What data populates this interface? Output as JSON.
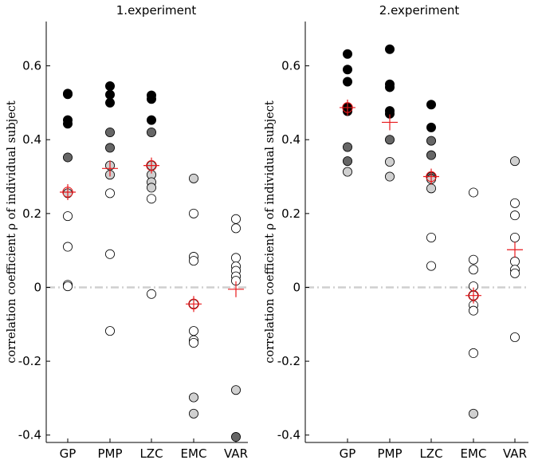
{
  "chart_data": [
    {
      "type": "scatter",
      "title": "1.experiment",
      "ylabel": "correlation coefficient ρ of individual subject",
      "ylim": [
        -0.42,
        0.72
      ],
      "yticks": [
        -0.4,
        -0.2,
        0,
        0.2,
        0.4,
        0.6
      ],
      "ytick_labels": [
        "-0.4",
        "-0.2",
        "0",
        "0.2",
        "0.4",
        "0.6"
      ],
      "categories": [
        "GP",
        "PMP",
        "LZC",
        "EMC",
        "VAR"
      ],
      "zero_line": {
        "y": 0,
        "style": "dash-dot",
        "color": "#cfcfcf"
      },
      "series": [
        {
          "name": "GP",
          "mean": 0.258,
          "mean_circle": true,
          "points": [
            {
              "y": 0.525,
              "fill": "#000000"
            },
            {
              "y": 0.523,
              "fill": "#000000"
            },
            {
              "y": 0.453,
              "fill": "#000000"
            },
            {
              "y": 0.443,
              "fill": "#000000"
            },
            {
              "y": 0.352,
              "fill": "#666666"
            },
            {
              "y": 0.255,
              "fill": "#d0d0d0"
            },
            {
              "y": 0.193,
              "fill": "#ffffff"
            },
            {
              "y": 0.11,
              "fill": "#ffffff"
            },
            {
              "y": 0.007,
              "fill": "#ffffff"
            },
            {
              "y": 0.003,
              "fill": "#ffffff"
            }
          ]
        },
        {
          "name": "PMP",
          "mean": 0.322,
          "mean_circle": false,
          "points": [
            {
              "y": 0.545,
              "fill": "#000000"
            },
            {
              "y": 0.522,
              "fill": "#000000"
            },
            {
              "y": 0.5,
              "fill": "#000000"
            },
            {
              "y": 0.42,
              "fill": "#666666"
            },
            {
              "y": 0.378,
              "fill": "#666666"
            },
            {
              "y": 0.33,
              "fill": "#d0d0d0"
            },
            {
              "y": 0.305,
              "fill": "#d0d0d0"
            },
            {
              "y": 0.255,
              "fill": "#ffffff"
            },
            {
              "y": 0.09,
              "fill": "#ffffff"
            },
            {
              "y": -0.118,
              "fill": "#ffffff"
            }
          ]
        },
        {
          "name": "LZC",
          "mean": 0.33,
          "mean_circle": true,
          "points": [
            {
              "y": 0.52,
              "fill": "#000000"
            },
            {
              "y": 0.51,
              "fill": "#000000"
            },
            {
              "y": 0.453,
              "fill": "#000000"
            },
            {
              "y": 0.42,
              "fill": "#666666"
            },
            {
              "y": 0.33,
              "fill": "#d0d0d0"
            },
            {
              "y": 0.305,
              "fill": "#d0d0d0"
            },
            {
              "y": 0.285,
              "fill": "#d0d0d0"
            },
            {
              "y": 0.27,
              "fill": "#d0d0d0"
            },
            {
              "y": 0.24,
              "fill": "#ffffff"
            },
            {
              "y": -0.018,
              "fill": "#ffffff"
            }
          ]
        },
        {
          "name": "EMC",
          "mean": -0.045,
          "mean_circle": true,
          "points": [
            {
              "y": 0.295,
              "fill": "#d0d0d0"
            },
            {
              "y": 0.2,
              "fill": "#ffffff"
            },
            {
              "y": 0.083,
              "fill": "#ffffff"
            },
            {
              "y": 0.072,
              "fill": "#ffffff"
            },
            {
              "y": -0.045,
              "fill": "#ffffff"
            },
            {
              "y": -0.118,
              "fill": "#ffffff"
            },
            {
              "y": -0.143,
              "fill": "#ffffff"
            },
            {
              "y": -0.15,
              "fill": "#ffffff"
            },
            {
              "y": -0.298,
              "fill": "#d0d0d0"
            },
            {
              "y": -0.342,
              "fill": "#d0d0d0"
            }
          ]
        },
        {
          "name": "VAR",
          "mean": -0.005,
          "mean_circle": false,
          "points": [
            {
              "y": 0.185,
              "fill": "#ffffff"
            },
            {
              "y": 0.16,
              "fill": "#ffffff"
            },
            {
              "y": 0.08,
              "fill": "#ffffff"
            },
            {
              "y": 0.057,
              "fill": "#ffffff"
            },
            {
              "y": 0.045,
              "fill": "#ffffff"
            },
            {
              "y": 0.03,
              "fill": "#ffffff"
            },
            {
              "y": 0.018,
              "fill": "#ffffff"
            },
            {
              "y": -0.278,
              "fill": "#d0d0d0"
            },
            {
              "y": -0.405,
              "fill": "#666666"
            }
          ]
        }
      ]
    },
    {
      "type": "scatter",
      "title": "2.experiment",
      "ylabel": "correlation coefficient ρ of individual subject",
      "ylim": [
        -0.42,
        0.72
      ],
      "yticks": [
        -0.4,
        -0.2,
        0,
        0.2,
        0.4,
        0.6
      ],
      "ytick_labels": [
        "-0.4",
        "-0.2",
        "0",
        "0.2",
        "0.4",
        "0.6"
      ],
      "categories": [
        "GP",
        "PMP",
        "LZC",
        "EMC",
        "VAR"
      ],
      "zero_line": {
        "y": 0,
        "style": "dash-dot",
        "color": "#cfcfcf"
      },
      "series": [
        {
          "name": "GP",
          "mean": 0.487,
          "mean_circle": true,
          "points": [
            {
              "y": 0.632,
              "fill": "#000000"
            },
            {
              "y": 0.59,
              "fill": "#000000"
            },
            {
              "y": 0.557,
              "fill": "#000000"
            },
            {
              "y": 0.488,
              "fill": "#000000"
            },
            {
              "y": 0.477,
              "fill": "#000000"
            },
            {
              "y": 0.38,
              "fill": "#666666"
            },
            {
              "y": 0.342,
              "fill": "#666666"
            },
            {
              "y": 0.313,
              "fill": "#d0d0d0"
            }
          ]
        },
        {
          "name": "PMP",
          "mean": 0.447,
          "mean_circle": false,
          "points": [
            {
              "y": 0.645,
              "fill": "#000000"
            },
            {
              "y": 0.55,
              "fill": "#000000"
            },
            {
              "y": 0.542,
              "fill": "#000000"
            },
            {
              "y": 0.478,
              "fill": "#000000"
            },
            {
              "y": 0.47,
              "fill": "#000000"
            },
            {
              "y": 0.4,
              "fill": "#666666"
            },
            {
              "y": 0.34,
              "fill": "#d0d0d0"
            },
            {
              "y": 0.3,
              "fill": "#d0d0d0"
            }
          ]
        },
        {
          "name": "LZC",
          "mean": 0.3,
          "mean_circle": true,
          "points": [
            {
              "y": 0.495,
              "fill": "#000000"
            },
            {
              "y": 0.433,
              "fill": "#000000"
            },
            {
              "y": 0.397,
              "fill": "#666666"
            },
            {
              "y": 0.358,
              "fill": "#666666"
            },
            {
              "y": 0.3,
              "fill": "#666666"
            },
            {
              "y": 0.293,
              "fill": "#d0d0d0"
            },
            {
              "y": 0.268,
              "fill": "#d0d0d0"
            },
            {
              "y": 0.135,
              "fill": "#ffffff"
            },
            {
              "y": 0.058,
              "fill": "#ffffff"
            }
          ]
        },
        {
          "name": "EMC",
          "mean": -0.022,
          "mean_circle": true,
          "points": [
            {
              "y": 0.257,
              "fill": "#ffffff"
            },
            {
              "y": 0.075,
              "fill": "#ffffff"
            },
            {
              "y": 0.048,
              "fill": "#ffffff"
            },
            {
              "y": 0.003,
              "fill": "#ffffff"
            },
            {
              "y": -0.022,
              "fill": "#ffffff"
            },
            {
              "y": -0.048,
              "fill": "#ffffff"
            },
            {
              "y": -0.063,
              "fill": "#ffffff"
            },
            {
              "y": -0.178,
              "fill": "#ffffff"
            },
            {
              "y": -0.342,
              "fill": "#d0d0d0"
            }
          ]
        },
        {
          "name": "VAR",
          "mean": 0.102,
          "mean_circle": false,
          "points": [
            {
              "y": 0.342,
              "fill": "#d0d0d0"
            },
            {
              "y": 0.228,
              "fill": "#ffffff"
            },
            {
              "y": 0.195,
              "fill": "#ffffff"
            },
            {
              "y": 0.135,
              "fill": "#ffffff"
            },
            {
              "y": 0.07,
              "fill": "#ffffff"
            },
            {
              "y": 0.048,
              "fill": "#ffffff"
            },
            {
              "y": 0.038,
              "fill": "#ffffff"
            },
            {
              "y": -0.135,
              "fill": "#ffffff"
            }
          ]
        }
      ]
    }
  ]
}
